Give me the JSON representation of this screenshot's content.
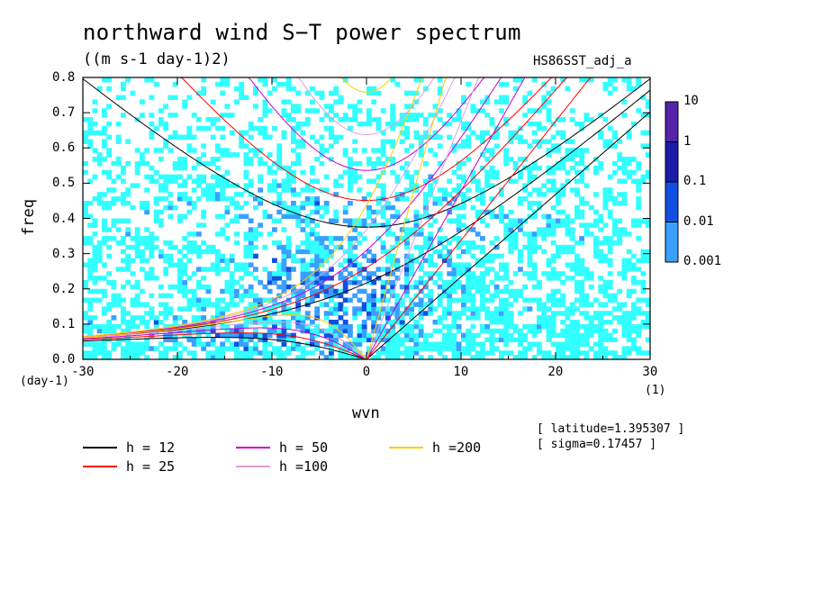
{
  "title": "northward wind S−T power spectrum",
  "units": "((m s-1 day-1)2)",
  "run_id": "HS86SST_adj_a",
  "info": {
    "latitude": "[ latitude=1.395307 ]",
    "sigma": "[ sigma=0.17457 ]"
  },
  "chart_data": {
    "type": "heatmap",
    "xlabel": "wvn",
    "ylabel": "freq",
    "xunit": "(1)",
    "yunit": "(day-1)",
    "xlim": [
      -30,
      30
    ],
    "ylim": [
      0,
      0.8
    ],
    "x_ticks": [
      "-30",
      "-20",
      "-10",
      "0",
      "10",
      "20",
      "30"
    ],
    "y_ticks": [
      "0.0",
      "0.1",
      "0.2",
      "0.3",
      "0.4",
      "0.5",
      "0.6",
      "0.7",
      "0.8"
    ],
    "colorbar": {
      "levels": [
        "10",
        "1",
        "0.1",
        "0.01",
        "0.001"
      ],
      "colors": [
        "#5522aa",
        "#1c1ca8",
        "#1050e0",
        "#3aa0ff",
        "#33ffff"
      ]
    },
    "dispersion_curves": [
      {
        "label": "h = 12",
        "color": "#000000",
        "h": 12
      },
      {
        "label": "h = 25",
        "color": "#ff0000",
        "h": 25
      },
      {
        "label": "h = 50",
        "color": "#cc00cc",
        "h": 50
      },
      {
        "label": "h =100",
        "color": "#dda0dd",
        "h": 100
      },
      {
        "label": "h =200",
        "color": "#ffcc00",
        "h": 200
      }
    ]
  }
}
